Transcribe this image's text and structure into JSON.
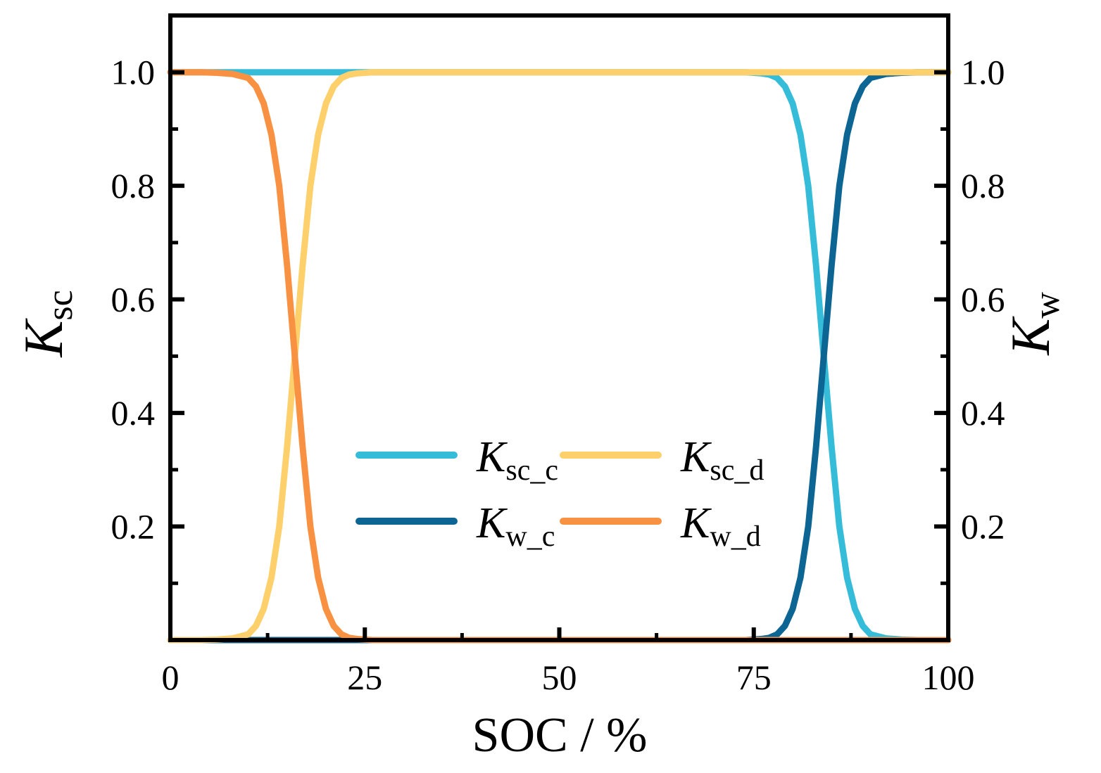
{
  "chart_data": {
    "type": "line",
    "xlabel": "SOC / %",
    "ylabel_left": {
      "symbol": "K",
      "subscript": "sc"
    },
    "ylabel_right": {
      "symbol": "K",
      "subscript": "w"
    },
    "xlim": [
      0,
      100
    ],
    "ylim": [
      0,
      1.1
    ],
    "x_ticks": [
      0,
      25,
      50,
      75,
      100
    ],
    "x_tick_labels": [
      "0",
      "25",
      "50",
      "75",
      "100"
    ],
    "y_ticks": [
      0.2,
      0.4,
      0.6,
      0.8,
      1.0
    ],
    "y_tick_labels": [
      "0.2",
      "0.4",
      "0.6",
      "0.8",
      "1.0"
    ],
    "right_y_tick_labels": [
      "0.2",
      "0.4",
      "0.6",
      "0.8",
      "1.0"
    ],
    "x": [
      0,
      2,
      4,
      6,
      8,
      10,
      11,
      12,
      13,
      14,
      15,
      16,
      17,
      18,
      19,
      20,
      21,
      22,
      23,
      24,
      26,
      30,
      40,
      50,
      60,
      70,
      74,
      76,
      77,
      78,
      79,
      80,
      81,
      82,
      83,
      84,
      85,
      86,
      87,
      88,
      89,
      90,
      92,
      94,
      96,
      98,
      100
    ],
    "series": [
      {
        "name": "Ksc_c",
        "label": {
          "symbol": "K",
          "subscript": "sc_c"
        },
        "color": "#35BCD9",
        "values": [
          1.0,
          1.0,
          1.0,
          1.0,
          1.0,
          1.0,
          1.0,
          1.0,
          1.0,
          1.0,
          1.0,
          1.0,
          1.0,
          1.0,
          1.0,
          1.0,
          1.0,
          1.0,
          1.0,
          1.0,
          1.0,
          1.0,
          1.0,
          1.0,
          1.0,
          1.0,
          1.0,
          0.998,
          0.996,
          0.99,
          0.975,
          0.945,
          0.89,
          0.8,
          0.66,
          0.5,
          0.34,
          0.2,
          0.11,
          0.055,
          0.025,
          0.01,
          0.003,
          0.001,
          0.0,
          0.0,
          0.0
        ]
      },
      {
        "name": "Ksc_d",
        "label": {
          "symbol": "K",
          "subscript": "sc_d"
        },
        "color": "#FDD06B",
        "values": [
          0.0,
          0.0,
          0.0,
          0.001,
          0.003,
          0.01,
          0.025,
          0.055,
          0.11,
          0.2,
          0.34,
          0.5,
          0.66,
          0.8,
          0.89,
          0.945,
          0.975,
          0.99,
          0.996,
          0.998,
          1.0,
          1.0,
          1.0,
          1.0,
          1.0,
          1.0,
          1.0,
          1.0,
          1.0,
          1.0,
          1.0,
          1.0,
          1.0,
          1.0,
          1.0,
          1.0,
          1.0,
          1.0,
          1.0,
          1.0,
          1.0,
          1.0,
          1.0,
          1.0,
          1.0,
          1.0,
          1.0
        ]
      },
      {
        "name": "Kw_c",
        "label": {
          "symbol": "K",
          "subscript": "w_c"
        },
        "color": "#0D6593",
        "values": [
          0.0,
          0.0,
          0.0,
          0.0,
          0.0,
          0.0,
          0.0,
          0.0,
          0.0,
          0.0,
          0.0,
          0.0,
          0.0,
          0.0,
          0.0,
          0.0,
          0.0,
          0.0,
          0.0,
          0.0,
          0.0,
          0.0,
          0.0,
          0.0,
          0.0,
          0.0,
          0.0,
          0.002,
          0.004,
          0.01,
          0.025,
          0.055,
          0.11,
          0.2,
          0.34,
          0.5,
          0.66,
          0.8,
          0.89,
          0.945,
          0.975,
          0.99,
          0.997,
          0.999,
          1.0,
          1.0,
          1.0
        ]
      },
      {
        "name": "Kw_d",
        "label": {
          "symbol": "K",
          "subscript": "w_d"
        },
        "color": "#F99143",
        "values": [
          1.0,
          1.0,
          1.0,
          0.999,
          0.997,
          0.99,
          0.975,
          0.945,
          0.89,
          0.8,
          0.66,
          0.5,
          0.34,
          0.2,
          0.11,
          0.055,
          0.025,
          0.01,
          0.004,
          0.002,
          0.0,
          0.0,
          0.0,
          0.0,
          0.0,
          0.0,
          0.0,
          0.0,
          0.0,
          0.0,
          0.0,
          0.0,
          0.0,
          0.0,
          0.0,
          0.0,
          0.0,
          0.0,
          0.0,
          0.0,
          0.0,
          0.0,
          0.0,
          0.0,
          0.0,
          0.0,
          0.0
        ]
      }
    ],
    "legend": {
      "location": "lower-center",
      "columns": 2,
      "order": [
        "Ksc_c",
        "Ksc_d",
        "Kw_c",
        "Kw_d"
      ]
    },
    "grid": false
  }
}
